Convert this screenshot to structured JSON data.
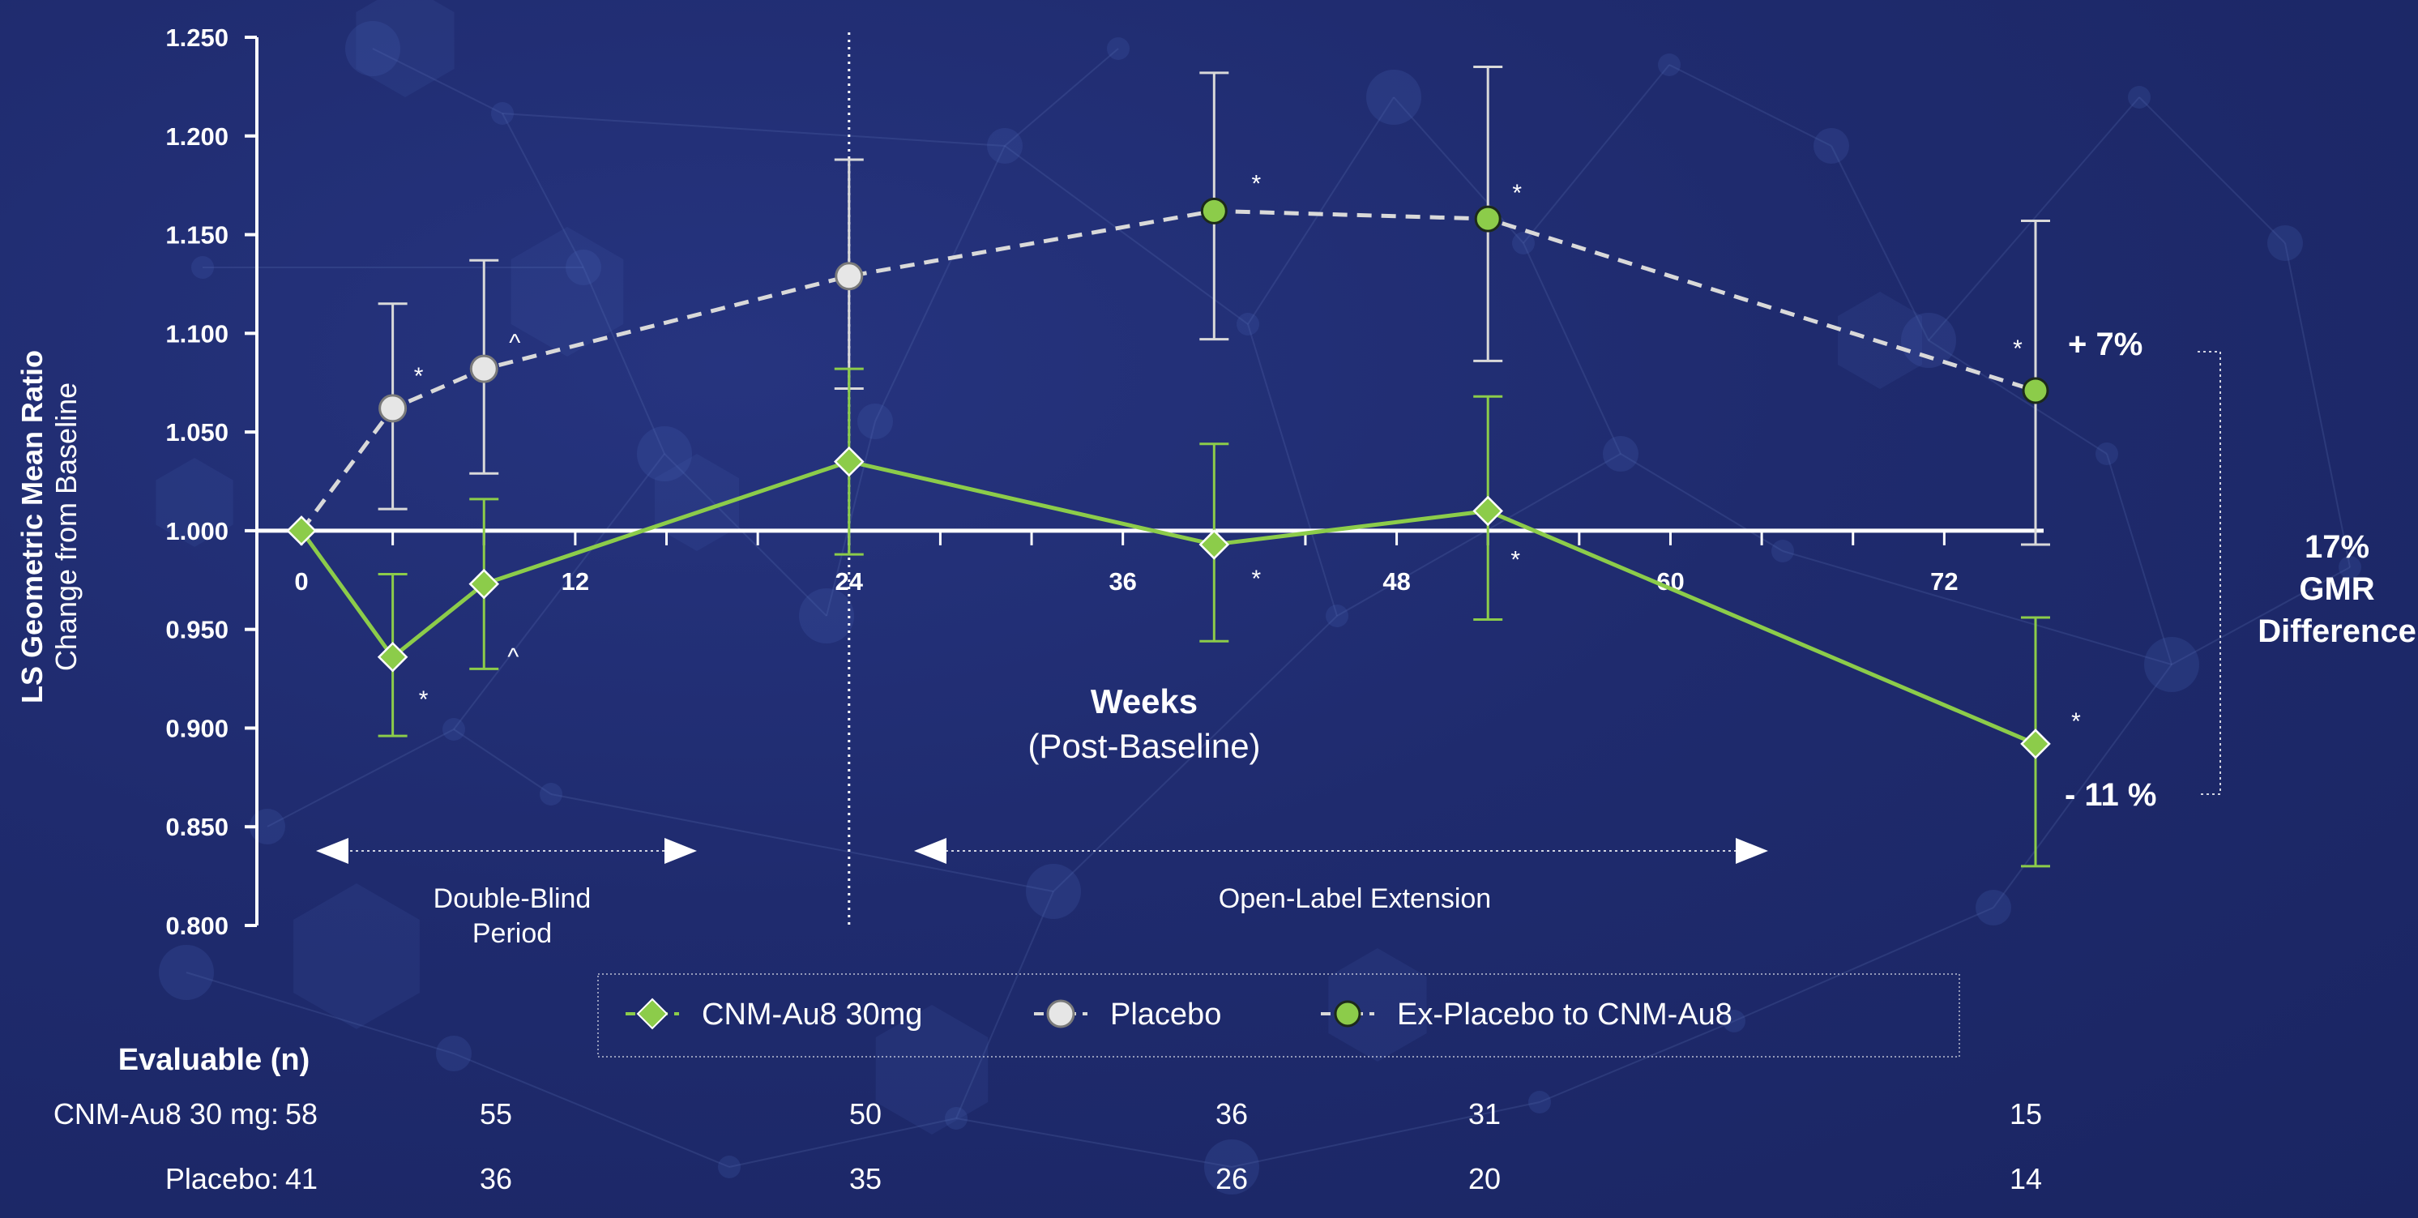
{
  "chart_data": {
    "type": "line",
    "ylabel_line1": "LS Geometric Mean Ratio",
    "ylabel_line2": "Change from Baseline",
    "xlabel_line1": "Weeks",
    "xlabel_line2": "(Post-Baseline)",
    "ylim": [
      0.8,
      1.25
    ],
    "xlim": [
      0,
      76
    ],
    "y_ticks": [
      "1.250",
      "1.200",
      "1.150",
      "1.100",
      "1.050",
      "1.000",
      "0.950",
      "0.900",
      "0.850",
      "0.800"
    ],
    "x_ticks": [
      "0",
      "12",
      "24",
      "36",
      "48",
      "60",
      "72"
    ],
    "baseline": 1.0,
    "divider_week": 24,
    "series": [
      {
        "name": "CNM-Au8 30mg",
        "color": "#8ccc4a",
        "marker": "diamond",
        "points": [
          {
            "x": 0,
            "y": 1.0,
            "lo": null,
            "hi": null,
            "mark": ""
          },
          {
            "x": 4,
            "y": 0.936,
            "lo": 0.896,
            "hi": 0.978,
            "mark": "*"
          },
          {
            "x": 8,
            "y": 0.973,
            "lo": 0.93,
            "hi": 1.016,
            "mark": "^"
          },
          {
            "x": 24,
            "y": 1.035,
            "lo": 0.988,
            "hi": 1.082,
            "mark": ""
          },
          {
            "x": 40,
            "y": 0.993,
            "lo": 0.944,
            "hi": 1.044,
            "mark": "*"
          },
          {
            "x": 52,
            "y": 1.01,
            "lo": 0.955,
            "hi": 1.068,
            "mark": "*"
          },
          {
            "x": 76,
            "y": 0.892,
            "lo": 0.83,
            "hi": 0.956,
            "mark": "*"
          }
        ]
      },
      {
        "name": "Placebo",
        "color": "#d9d9d9",
        "marker": "circle",
        "points": [
          {
            "x": 0,
            "y": 1.0,
            "lo": null,
            "hi": null,
            "mark": ""
          },
          {
            "x": 4,
            "y": 1.062,
            "lo": 1.011,
            "hi": 1.115,
            "mark": "*"
          },
          {
            "x": 8,
            "y": 1.082,
            "lo": 1.029,
            "hi": 1.137,
            "mark": "^"
          },
          {
            "x": 24,
            "y": 1.129,
            "lo": 1.072,
            "hi": 1.188,
            "mark": ""
          }
        ]
      },
      {
        "name": "Ex-Placebo to CNM-Au8",
        "color": "#8ccc4a",
        "marker": "circle",
        "points": [
          {
            "x": 40,
            "y": 1.162,
            "lo": 1.097,
            "hi": 1.232,
            "mark": "*"
          },
          {
            "x": 52,
            "y": 1.158,
            "lo": 1.086,
            "hi": 1.235,
            "mark": "*"
          },
          {
            "x": 76,
            "y": 1.071,
            "lo": 0.993,
            "hi": 1.157,
            "mark": "*"
          }
        ]
      }
    ],
    "annotations": {
      "top_pct": "+ 7%",
      "bottom_pct": "- 11 %",
      "diff_line1": "17%",
      "diff_line2": "GMR",
      "diff_line3": "Difference"
    },
    "periods": {
      "double_blind_line1": "Double-Blind",
      "double_blind_line2": "Period",
      "open_label": "Open-Label Extension"
    },
    "legend": {
      "items": [
        "CNM-Au8 30mg",
        "Placebo",
        "Ex-Placebo to CNM-Au8"
      ]
    },
    "evaluable": {
      "title": "Evaluable (n)",
      "rows": [
        {
          "label": "CNM-Au8 30 mg:",
          "values": [
            "58",
            "55",
            "50",
            "36",
            "31",
            "15"
          ]
        },
        {
          "label": "Placebo:",
          "values": [
            "41",
            "36",
            "35",
            "26",
            "20",
            "14"
          ]
        }
      ]
    }
  }
}
